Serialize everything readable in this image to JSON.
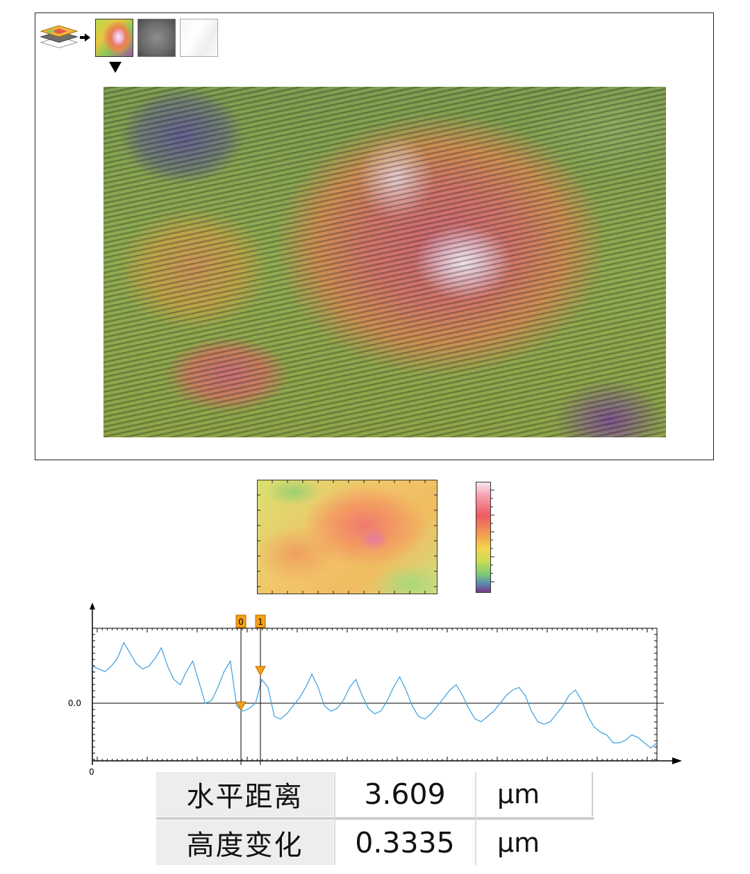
{
  "toolbar": {
    "icons": [
      "layers-icon",
      "arrow-right-icon"
    ],
    "thumbnails": [
      "color-height-map",
      "grayscale-map",
      "white-map"
    ],
    "selected_thumbnail": 0
  },
  "colors": {
    "profile_line": "#3a9ee0",
    "marker": "#f5a017",
    "marker_border": "#b86a00",
    "axis": "#000000"
  },
  "profile": {
    "y_tick_label": "0.0",
    "x_origin_label": "0",
    "cursors": [
      {
        "label": "0"
      },
      {
        "label": "1"
      }
    ],
    "points": [
      1.4,
      1.3,
      1.2,
      1.4,
      1.7,
      2.3,
      1.9,
      1.5,
      1.3,
      1.4,
      1.7,
      2.1,
      1.4,
      0.9,
      0.7,
      1.2,
      1.6,
      0.8,
      0.0,
      0.1,
      0.6,
      1.2,
      1.6,
      -0.1,
      -0.3,
      -0.2,
      0.0,
      0.9,
      0.6,
      -0.5,
      -0.6,
      -0.4,
      -0.1,
      0.2,
      0.6,
      1.1,
      0.6,
      -0.1,
      -0.3,
      -0.2,
      0.1,
      0.6,
      0.9,
      0.3,
      -0.2,
      -0.4,
      -0.3,
      0.1,
      0.6,
      1.0,
      0.5,
      -0.1,
      -0.5,
      -0.6,
      -0.4,
      -0.1,
      0.2,
      0.5,
      0.7,
      0.3,
      -0.2,
      -0.6,
      -0.7,
      -0.5,
      -0.3,
      0.0,
      0.3,
      0.5,
      0.6,
      0.3,
      -0.3,
      -0.7,
      -0.8,
      -0.7,
      -0.4,
      -0.1,
      0.3,
      0.5,
      0.1,
      -0.5,
      -0.9,
      -1.1,
      -1.2,
      -1.5,
      -1.5,
      -1.4,
      -1.2,
      -1.3,
      -1.5,
      -1.7,
      -1.5
    ]
  },
  "measurements": [
    {
      "label": "水平距离",
      "value": "3.609",
      "unit": "μm"
    },
    {
      "label": "高度变化",
      "value": "0.3335",
      "unit": "μm"
    }
  ]
}
